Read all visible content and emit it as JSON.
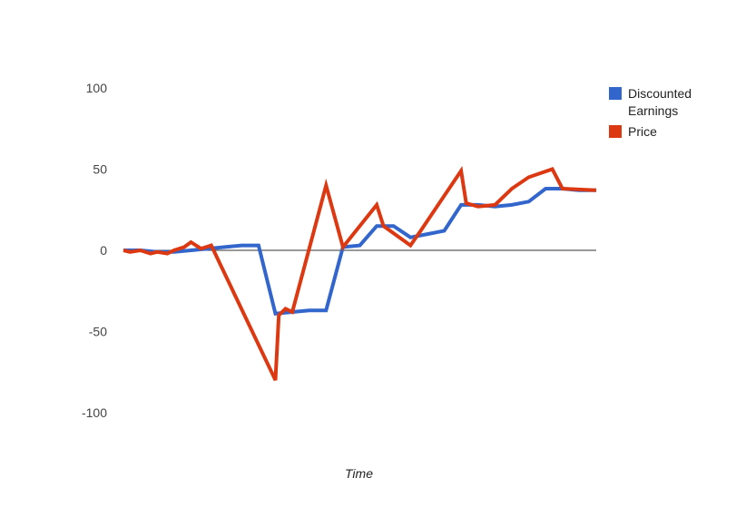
{
  "chart_data": {
    "type": "line",
    "title": "",
    "xlabel": "Time",
    "ylabel": "",
    "ylim": [
      -100,
      100
    ],
    "yticks": [
      100,
      50,
      0,
      -50,
      -100
    ],
    "ytick_labels": [
      "100",
      "50",
      "0",
      "-50",
      "-100"
    ],
    "grid": false,
    "legend": {
      "placement": "right",
      "entries": [
        {
          "line1": "Discounted",
          "line2": "Earnings"
        },
        {
          "line1": "Price",
          "line2": ""
        }
      ]
    },
    "series": [
      {
        "name": "Discounted Earnings",
        "color": "#3366cc",
        "x": [
          0,
          1,
          2,
          3,
          4,
          5,
          6,
          7,
          8,
          9,
          10,
          11,
          12,
          13,
          14,
          15,
          16,
          17,
          18,
          19,
          20,
          21,
          22,
          23,
          24,
          25,
          26,
          27,
          28
        ],
        "y": [
          0,
          0,
          -1,
          -1,
          0,
          1,
          2,
          3,
          3,
          -39,
          -38,
          -37,
          -37,
          2,
          3,
          15,
          15,
          8,
          10,
          12,
          28,
          28,
          27,
          28,
          30,
          38,
          38,
          37,
          37
        ]
      },
      {
        "name": "Price",
        "color": "#dc3912",
        "x": [
          0,
          0.4,
          1,
          1.6,
          2,
          2.6,
          3,
          3.6,
          4,
          4.6,
          5.2,
          9,
          9.2,
          9.6,
          10,
          12,
          13,
          15,
          15.4,
          17,
          17.6,
          20,
          20.3,
          21,
          22,
          23,
          24,
          25.4,
          26,
          28
        ],
        "y": [
          0,
          -1,
          0,
          -2,
          -1,
          -2,
          0,
          2,
          5,
          1,
          3,
          -80,
          -40,
          -36,
          -38,
          40,
          2,
          28,
          15,
          3,
          12,
          49,
          29,
          27,
          28,
          38,
          45,
          50,
          38,
          37
        ]
      }
    ]
  }
}
